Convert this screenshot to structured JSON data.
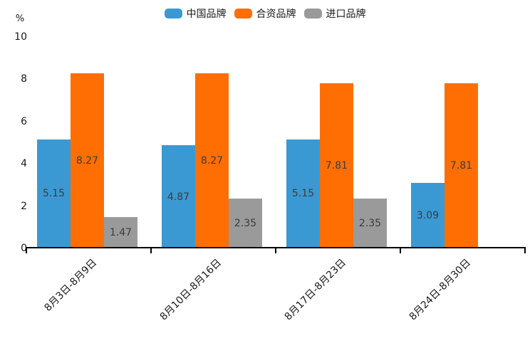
{
  "chart_data": {
    "type": "bar",
    "title": "",
    "xlabel": "",
    "ylabel": "%",
    "ylim": [
      0,
      10
    ],
    "yticks": [
      0,
      2,
      4,
      6,
      8,
      10
    ],
    "grid": false,
    "legend_position": "top-center",
    "value_labels": "inside-center",
    "background_color": "#ffffff",
    "axis_color": "#000000",
    "text_color": "#1a1a1a",
    "value_label_color": "#3c3c3c",
    "categories": [
      "8月3日-8月9日",
      "8月10日-8月16日",
      "8月17日-8月23日",
      "8月24日-8月30日"
    ],
    "series": [
      {
        "name": "中国品牌",
        "color": "#3a99d3",
        "values": [
          5.15,
          4.87,
          5.15,
          3.09
        ]
      },
      {
        "name": "合资品牌",
        "color": "#ff6e02",
        "values": [
          8.27,
          8.27,
          7.81,
          7.81
        ]
      },
      {
        "name": "进口品牌",
        "color": "#9a9a9a",
        "values": [
          1.47,
          2.35,
          2.35,
          null
        ]
      }
    ]
  }
}
